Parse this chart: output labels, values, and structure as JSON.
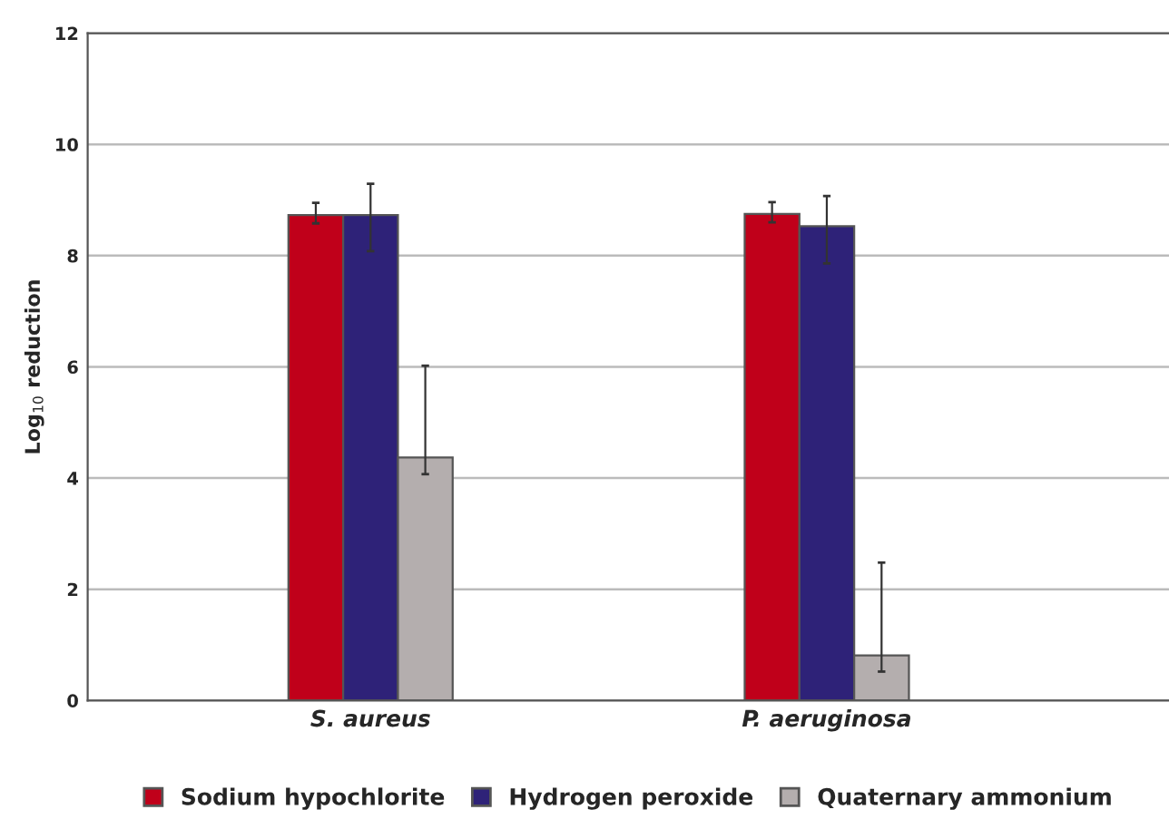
{
  "chart_data": {
    "type": "bar",
    "ylabel": "Log$_{10}$ reduction",
    "categories": [
      "S. aureus",
      "P. aeruginosa"
    ],
    "series": [
      {
        "name": "Sodium hypochlorite",
        "color": "#c0001a",
        "values": [
          8.73,
          8.75
        ],
        "errors": [
          [
            8.58,
            8.95
          ],
          [
            8.6,
            8.96
          ]
        ]
      },
      {
        "name": "Hydrogen peroxide",
        "color": "#2e2278",
        "values": [
          8.73,
          8.53
        ],
        "errors": [
          [
            8.08,
            9.29
          ],
          [
            7.86,
            9.07
          ]
        ]
      },
      {
        "name": "Quaternary ammonium",
        "color": "#b4aeae",
        "values": [
          4.37,
          0.81
        ],
        "errors": [
          [
            4.07,
            6.02
          ],
          [
            0.52,
            2.48
          ]
        ]
      }
    ],
    "ylim": [
      0,
      12
    ],
    "yticks": [
      0,
      2,
      4,
      6,
      8,
      10,
      12
    ],
    "grid": "y",
    "legend": "bottom"
  }
}
